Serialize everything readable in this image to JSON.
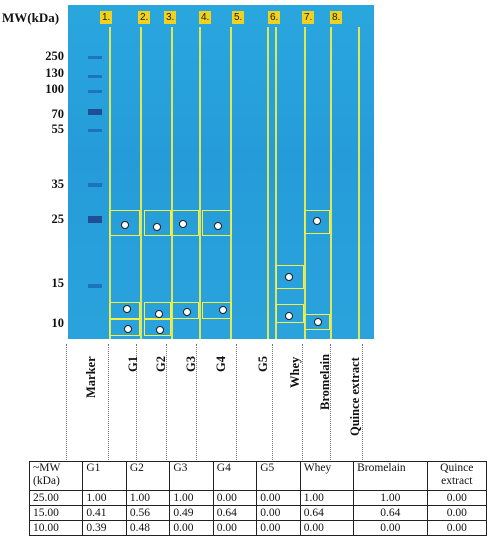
{
  "mw_axis": {
    "title": "MW(kDa)",
    "ticks": [
      "250",
      "130",
      "100",
      "70",
      "55",
      "35",
      "25",
      "15",
      "10"
    ]
  },
  "lanes": {
    "numbers": [
      "1.",
      "2.",
      "3.",
      "4.",
      "5.",
      "6.",
      "7.",
      "8."
    ],
    "labels": [
      "Marker",
      "G1",
      "G2",
      "G3",
      "G4",
      "G5",
      "Whey",
      "Bromelain",
      "Quince extract"
    ]
  },
  "table": {
    "header": [
      "~MW (kDa)",
      "G1",
      "G2",
      "G3",
      "G4",
      "G5",
      "Whey",
      "Bromelain",
      "Quince extract"
    ],
    "rows": [
      [
        "25.00",
        "1.00",
        "1.00",
        "1.00",
        "0.00",
        "0.00",
        "1.00",
        "1.00",
        "0.00"
      ],
      [
        "15.00",
        "0.41",
        "0.56",
        "0.49",
        "0.64",
        "0.00",
        "0.64",
        "0.64",
        "0.00"
      ],
      [
        "10.00",
        "0.39",
        "0.48",
        "0.00",
        "0.00",
        "0.00",
        "0.00",
        "0.00",
        "0.00"
      ]
    ]
  },
  "colors": {
    "gel": "#2aa2dd",
    "lane_lines": "#f4ee48",
    "badge": "#f0d21e",
    "marker_band": "#1a5fb0"
  }
}
